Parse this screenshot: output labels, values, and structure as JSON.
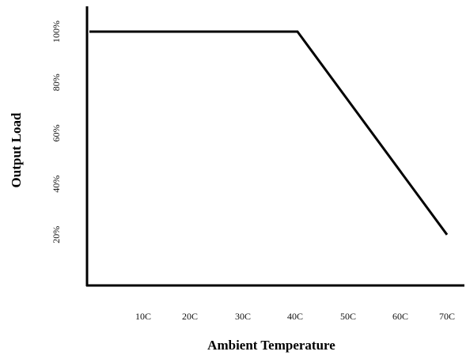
{
  "chart_data": {
    "type": "line",
    "xlabel": "Ambient Temperature",
    "ylabel": "Output Load",
    "x_ticks": [
      "10C",
      "20C",
      "30C",
      "40C",
      "50C",
      "60C",
      "70C"
    ],
    "y_ticks": [
      "20%",
      "40%",
      "60%",
      "80%",
      "100%"
    ],
    "series": [
      {
        "x": [
          0,
          40,
          70
        ],
        "y": [
          100,
          100,
          20
        ]
      }
    ],
    "xlim": [
      0,
      70
    ],
    "ylim": [
      0,
      110
    ],
    "grid": false,
    "legend": "none"
  }
}
